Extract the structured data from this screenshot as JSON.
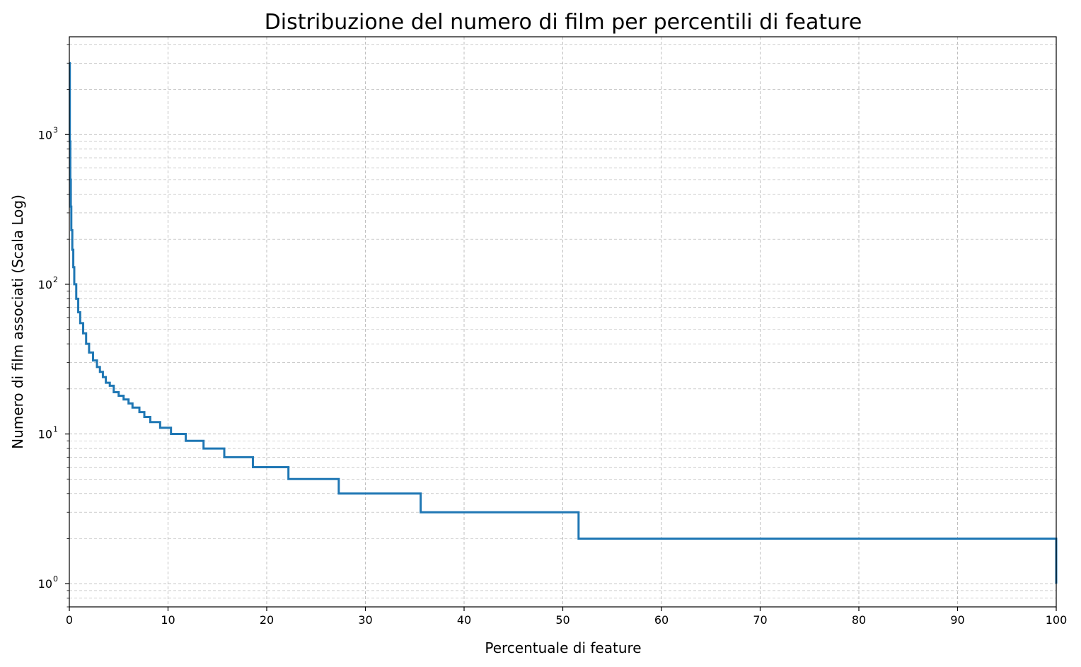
{
  "chart_data": {
    "type": "line",
    "title": "Distribuzione del numero di film per percentili di feature",
    "xlabel": "Percentuale di feature",
    "ylabel": "Numero di film associati (Scala Log)",
    "xlim": [
      0,
      100
    ],
    "ylim": [
      0.7,
      4500
    ],
    "yscale": "log",
    "grid": true,
    "x_ticks": [
      "0",
      "10",
      "20",
      "30",
      "40",
      "50",
      "60",
      "70",
      "80",
      "90",
      "100"
    ],
    "y_ticks": [
      {
        "base": "10",
        "exp": "0",
        "value": 1
      },
      {
        "base": "10",
        "exp": "1",
        "value": 10
      },
      {
        "base": "10",
        "exp": "2",
        "value": 100
      },
      {
        "base": "10",
        "exp": "3",
        "value": 1000
      }
    ],
    "line_color": "#1f77b4",
    "steps": [
      {
        "x": 0.0,
        "y": 3000
      },
      {
        "x": 0.05,
        "y": 900
      },
      {
        "x": 0.1,
        "y": 500
      },
      {
        "x": 0.15,
        "y": 330
      },
      {
        "x": 0.2,
        "y": 230
      },
      {
        "x": 0.3,
        "y": 170
      },
      {
        "x": 0.4,
        "y": 130
      },
      {
        "x": 0.5,
        "y": 100
      },
      {
        "x": 0.7,
        "y": 80
      },
      {
        "x": 0.9,
        "y": 65
      },
      {
        "x": 1.1,
        "y": 55
      },
      {
        "x": 1.4,
        "y": 47
      },
      {
        "x": 1.7,
        "y": 40
      },
      {
        "x": 2.0,
        "y": 35
      },
      {
        "x": 2.4,
        "y": 31
      },
      {
        "x": 2.8,
        "y": 28
      },
      {
        "x": 3.1,
        "y": 26
      },
      {
        "x": 3.4,
        "y": 24
      },
      {
        "x": 3.7,
        "y": 22
      },
      {
        "x": 4.1,
        "y": 21
      },
      {
        "x": 4.5,
        "y": 19
      },
      {
        "x": 5.0,
        "y": 18
      },
      {
        "x": 5.5,
        "y": 17
      },
      {
        "x": 6.0,
        "y": 16
      },
      {
        "x": 6.4,
        "y": 15
      },
      {
        "x": 7.1,
        "y": 14
      },
      {
        "x": 7.6,
        "y": 13
      },
      {
        "x": 8.2,
        "y": 12
      },
      {
        "x": 9.2,
        "y": 11
      },
      {
        "x": 10.3,
        "y": 10
      },
      {
        "x": 11.8,
        "y": 9
      },
      {
        "x": 13.6,
        "y": 8
      },
      {
        "x": 15.7,
        "y": 7
      },
      {
        "x": 18.6,
        "y": 6
      },
      {
        "x": 22.2,
        "y": 5
      },
      {
        "x": 27.3,
        "y": 4
      },
      {
        "x": 35.6,
        "y": 3
      },
      {
        "x": 51.6,
        "y": 2
      },
      {
        "x": 100,
        "y": 1
      }
    ]
  }
}
